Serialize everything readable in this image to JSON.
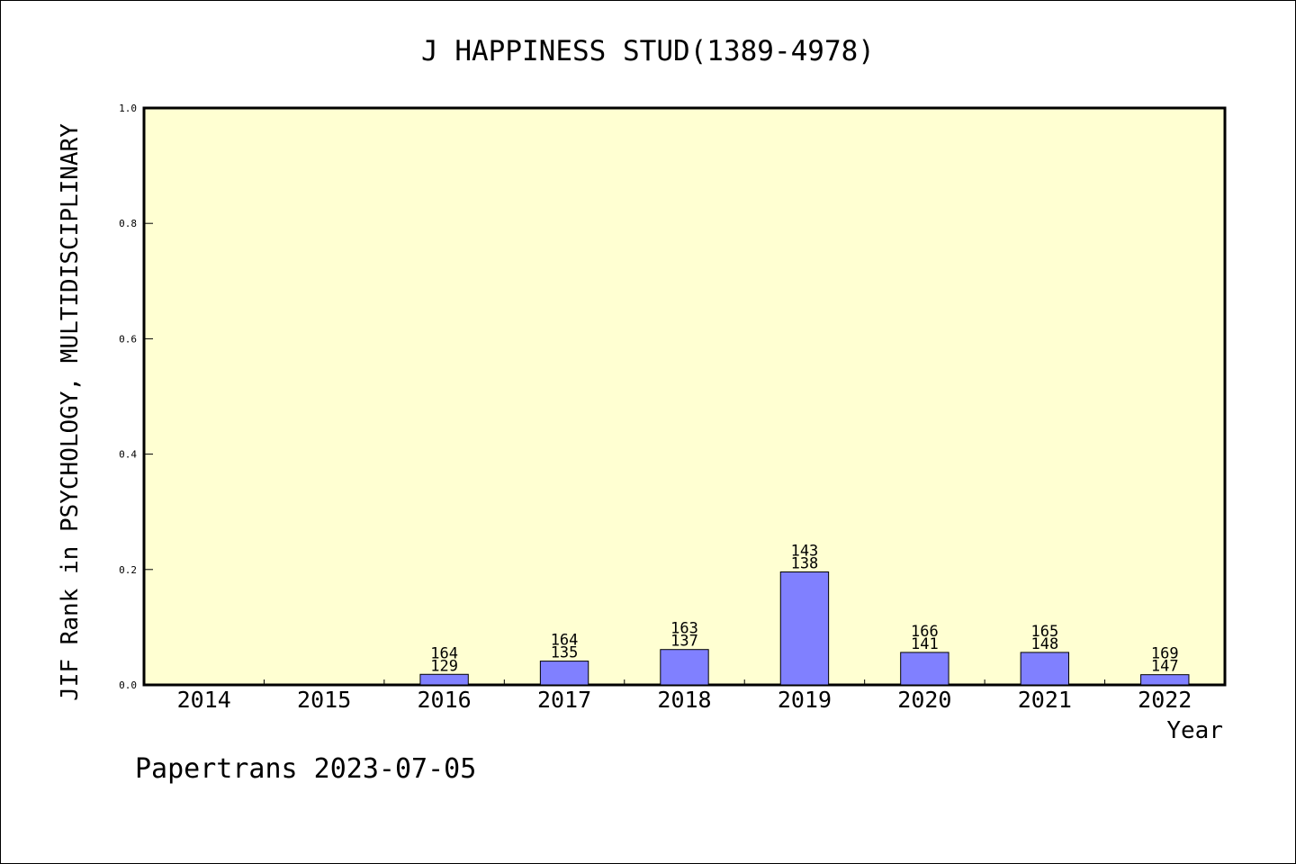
{
  "chart_data": {
    "type": "bar",
    "title": "J HAPPINESS STUD(1389-4978)",
    "xlabel": "Year",
    "ylabel": "JIF Rank in PSYCHOLOGY, MULTIDISCIPLINARY",
    "ylim": [
      0,
      1.0
    ],
    "yticks": [
      "0.0",
      "0.2",
      "0.4",
      "0.6",
      "0.8",
      "1.0"
    ],
    "categories": [
      "2014",
      "2015",
      "2016",
      "2017",
      "2018",
      "2019",
      "2020",
      "2021",
      "2022"
    ],
    "values": [
      0,
      0,
      0.0183,
      0.0412,
      0.0613,
      0.1958,
      0.0563,
      0.0563,
      0.0177
    ],
    "bar_labels": [
      null,
      null,
      {
        "total": "164",
        "rank": "129"
      },
      {
        "total": "164",
        "rank": "135"
      },
      {
        "total": "163",
        "rank": "137"
      },
      {
        "total": "143",
        "rank": "138"
      },
      {
        "total": "166",
        "rank": "141"
      },
      {
        "total": "165",
        "rank": "148"
      },
      {
        "total": "169",
        "rank": "147"
      }
    ],
    "grid": false,
    "colors": {
      "plot_background": "#ffffd2",
      "bar_fill": "#8080ff",
      "bar_stroke": "#000000"
    }
  },
  "footer": "Papertrans 2023-07-05"
}
